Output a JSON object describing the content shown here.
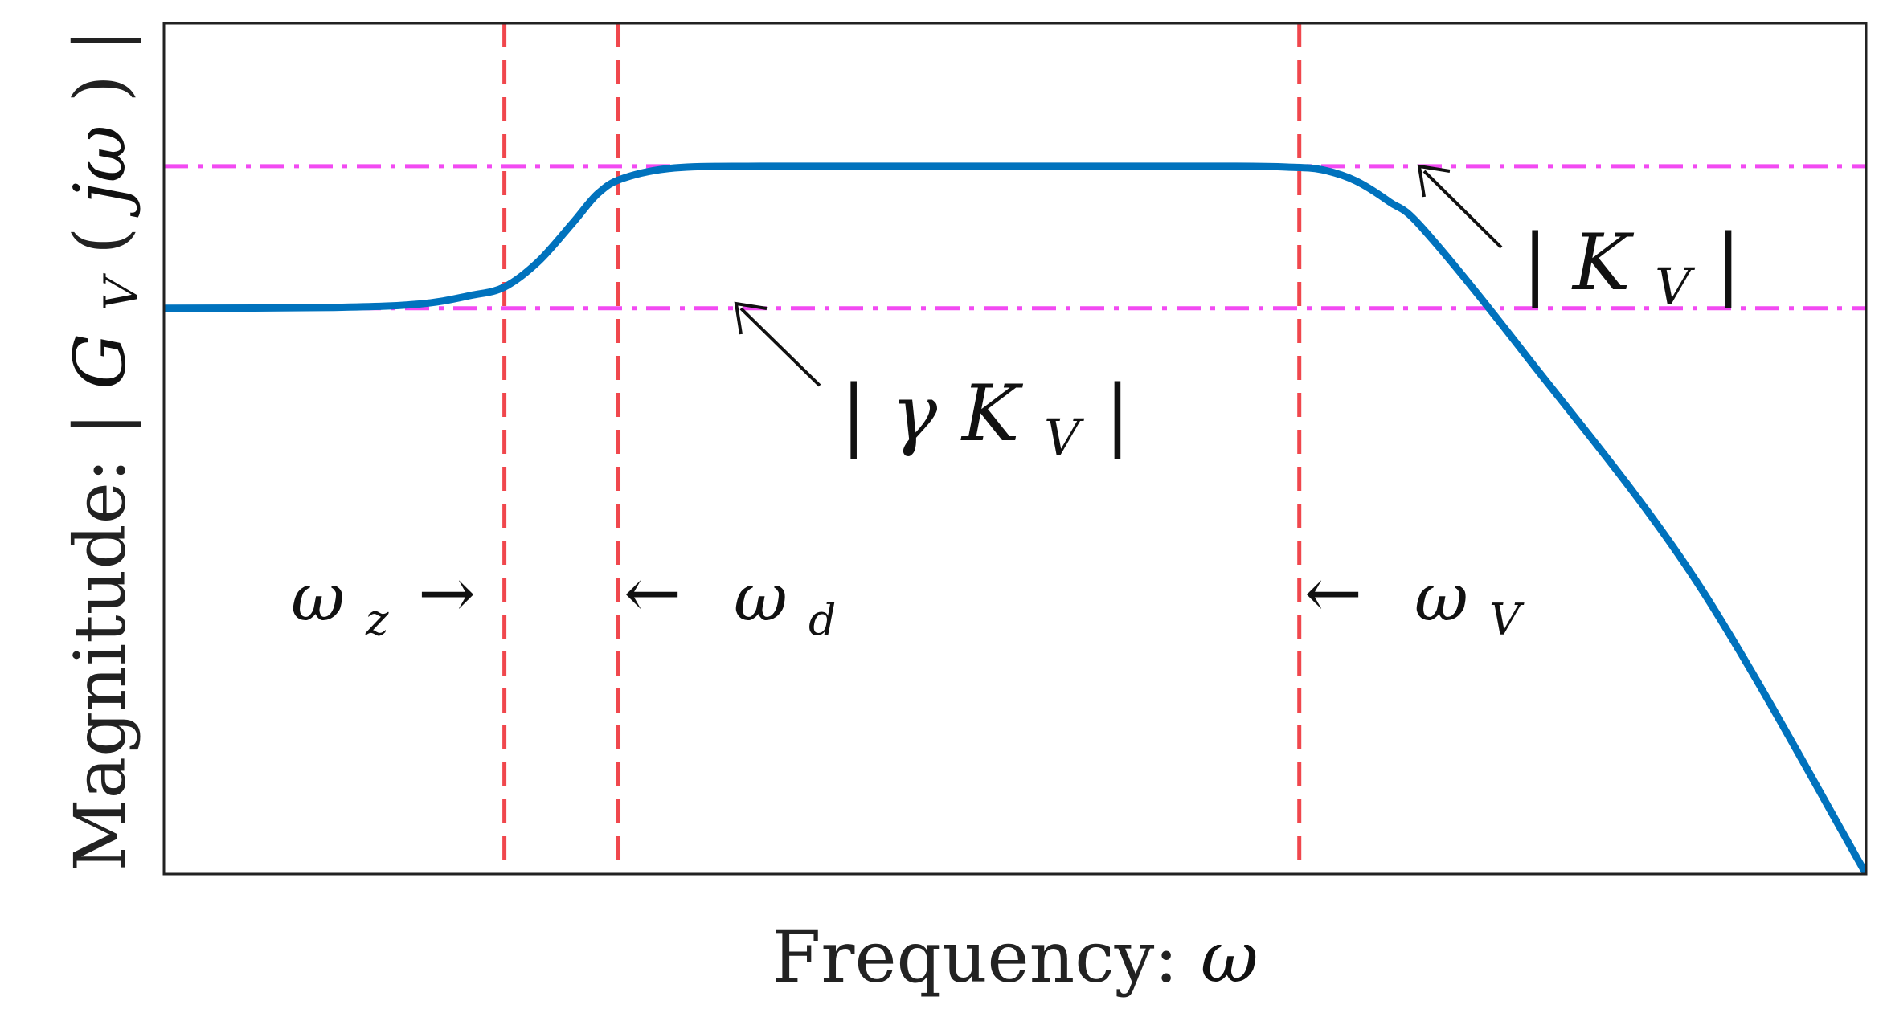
{
  "colors": {
    "curve": "#0072bd",
    "vertical_markers": "#f0474d",
    "horizontal_levels": "#f24af2",
    "axes": "#222222",
    "annotation": "#111111"
  },
  "chart_data": {
    "type": "line",
    "xlabel": "Frequency:",
    "xlabel_symbol": "ω",
    "ylabel": "Magnitude:",
    "ylabel_expr": {
      "open": "|",
      "G": "G",
      "sub": "V",
      "paren_open": "(",
      "jw": "jω",
      "paren_close": ")",
      "close": "|"
    },
    "xticks": [],
    "yticks": [],
    "grid": false,
    "xlim": [
      0,
      1
    ],
    "ylim": [
      0,
      1
    ],
    "series": [
      {
        "x": [
          0,
          0.1,
          0.15,
          0.18,
          0.2,
          0.22,
          0.24,
          0.255,
          0.27,
          0.3,
          0.35,
          0.45,
          0.55,
          0.63,
          0.66,
          0.68,
          0.7,
          0.72,
          0.74,
          0.8,
          0.9,
          1.0
        ],
        "y": [
          0.665,
          0.666,
          0.67,
          0.68,
          0.69,
          0.72,
          0.765,
          0.8,
          0.818,
          0.83,
          0.832,
          0.832,
          0.832,
          0.832,
          0.831,
          0.828,
          0.815,
          0.79,
          0.7578,
          0.61,
          0.345,
          0.0
        ]
      }
    ],
    "vertical_markers": [
      {
        "x": 0.2,
        "label": "ω",
        "sub": "z",
        "arrow": "→"
      },
      {
        "x": 0.267,
        "label": "ω",
        "sub": "d",
        "arrow": "←"
      },
      {
        "x": 0.667,
        "label": "ω",
        "sub": "V",
        "arrow": "←"
      }
    ],
    "horizontal_levels": [
      {
        "y": 0.832,
        "label_open": "|",
        "label": "K",
        "sub": "V",
        "label_close": "|"
      },
      {
        "y": 0.665,
        "label_open": "|",
        "label_pre": "γ",
        "label": "K",
        "sub": "V",
        "label_close": "|"
      }
    ]
  }
}
